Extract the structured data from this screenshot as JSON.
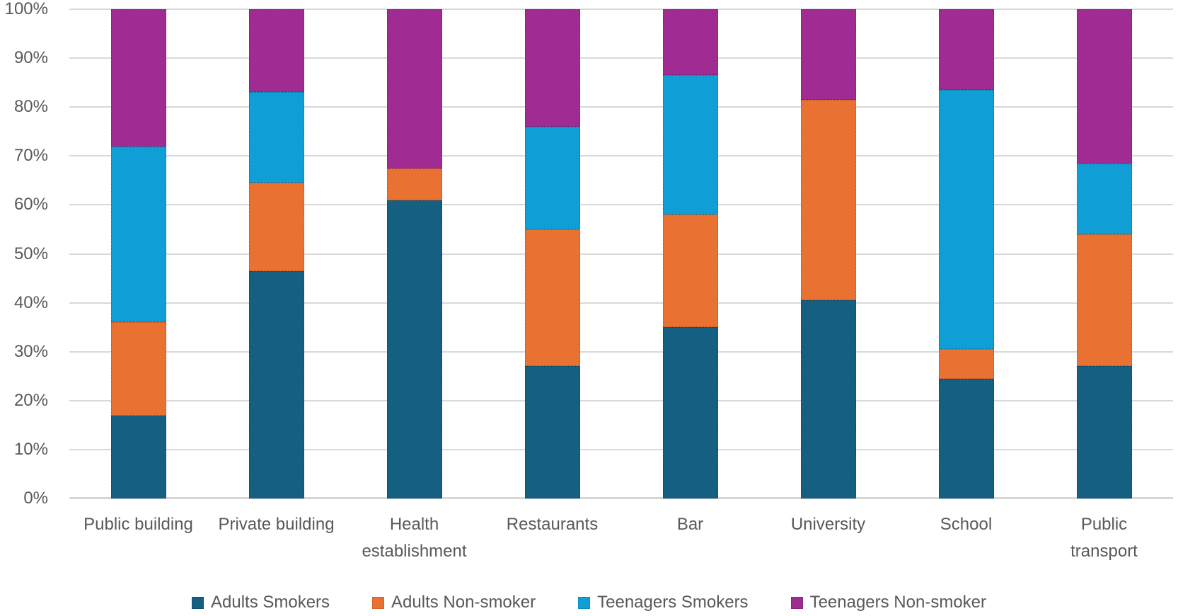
{
  "chart_data": {
    "type": "bar",
    "stacked": true,
    "percent_stacked": true,
    "title": "",
    "xlabel": "",
    "ylabel": "",
    "ylim": [
      0,
      100
    ],
    "grid": "horizontal",
    "gridline_color": "#D9D9D9",
    "axis_text_color": "#595959",
    "legend_position": "bottom",
    "yticks": [
      "0%",
      "10%",
      "20%",
      "30%",
      "40%",
      "50%",
      "60%",
      "70%",
      "80%",
      "90%",
      "100%"
    ],
    "categories": [
      "Public building",
      "Private building",
      "Health\nestablishment",
      "Restaurants",
      "Bar",
      "University",
      "School",
      "Public\ntransport"
    ],
    "series": [
      {
        "name": "Adults Smokers",
        "color": "#156082",
        "border_color": "#0C4460",
        "values": [
          17,
          46.5,
          61,
          27,
          35,
          40.5,
          24.5,
          27
        ]
      },
      {
        "name": "Adults Non-smoker",
        "color": "#E97132",
        "border_color": "#BB5521",
        "values": [
          19,
          18,
          6.5,
          28,
          23,
          41,
          6,
          27
        ]
      },
      {
        "name": "Teenagers Smokers",
        "color": "#0F9ED5",
        "border_color": "#0A76A3",
        "values": [
          36,
          18.5,
          0,
          21,
          28.5,
          0,
          53,
          14.5
        ]
      },
      {
        "name": "Teenagers Non-smoker",
        "color": "#A02B93",
        "border_color": "#771F6E",
        "values": [
          28,
          17,
          32.5,
          24,
          13.5,
          18.5,
          16.5,
          31.5
        ]
      }
    ]
  }
}
